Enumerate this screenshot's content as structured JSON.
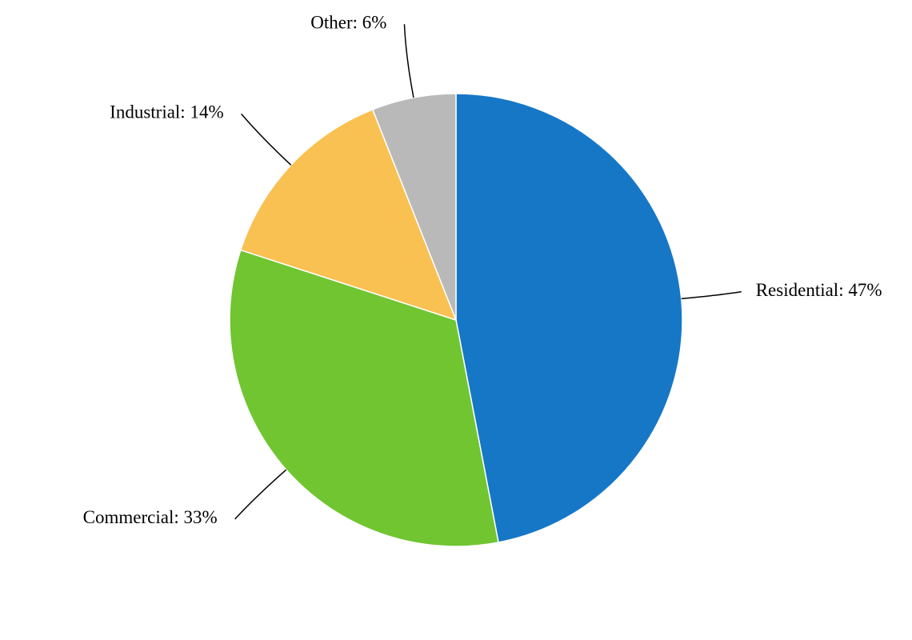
{
  "chart_data": {
    "type": "pie",
    "values": [
      47,
      33,
      14,
      6
    ],
    "value_labels": [
      "Residential: 47%",
      "Commercial: 33%",
      "Industrial: 14%",
      "Other: 6%"
    ],
    "colors": [
      "#1677c7",
      "#70c531",
      "#f9c052",
      "#b9b9b9"
    ]
  }
}
